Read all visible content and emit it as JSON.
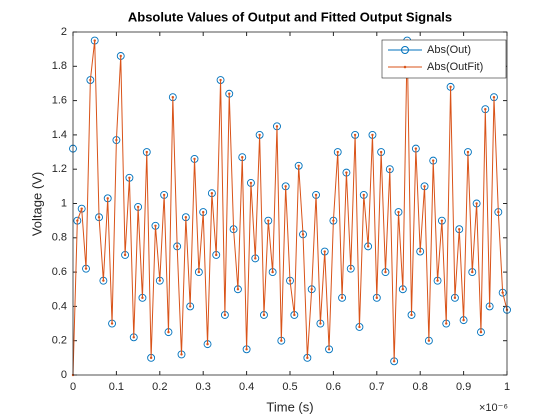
{
  "chart_data": {
    "type": "line",
    "title": "Absolute Values of Output and Fitted Output Signals",
    "xlabel": "Time (s)",
    "ylabel": "Voltage (V)",
    "x_exponent": "×10⁻⁶",
    "x": [
      0,
      1e-08,
      2e-08,
      3e-08,
      4e-08,
      5e-08,
      6e-08,
      7e-08,
      8e-08,
      9e-08,
      1e-07,
      1.1e-07,
      1.2e-07,
      1.3e-07,
      1.4e-07,
      1.5e-07,
      1.6e-07,
      1.7e-07,
      1.8e-07,
      1.9e-07,
      2e-07,
      2.1e-07,
      2.2e-07,
      2.3e-07,
      2.4e-07,
      2.5e-07,
      2.6e-07,
      2.7e-07,
      2.8e-07,
      2.9e-07,
      3e-07,
      3.1e-07,
      3.2e-07,
      3.3e-07,
      3.4e-07,
      3.5e-07,
      3.6e-07,
      3.7e-07,
      3.8e-07,
      3.9e-07,
      4e-07,
      4.1e-07,
      4.2e-07,
      4.3e-07,
      4.4e-07,
      4.5e-07,
      4.6e-07,
      4.7e-07,
      4.8e-07,
      4.9e-07,
      5e-07,
      5.1e-07,
      5.2e-07,
      5.3e-07,
      5.4e-07,
      5.5e-07,
      5.6e-07,
      5.7e-07,
      5.8e-07,
      5.9e-07,
      6e-07,
      6.1e-07,
      6.2e-07,
      6.3e-07,
      6.4e-07,
      6.5e-07,
      6.6e-07,
      6.7e-07,
      6.8e-07,
      6.9e-07,
      7e-07,
      7.1e-07,
      7.2e-07,
      7.3e-07,
      7.4e-07,
      7.5e-07,
      7.6e-07,
      7.7e-07,
      7.8e-07,
      7.9e-07,
      8e-07,
      8.1e-07,
      8.2e-07,
      8.3e-07,
      8.4e-07,
      8.5e-07,
      8.6e-07,
      8.7e-07,
      8.8e-07,
      8.9e-07,
      9e-07,
      9.1e-07,
      9.2e-07,
      9.3e-07,
      9.4e-07,
      9.5e-07,
      9.6e-07,
      9.7e-07,
      9.8e-07,
      9.9e-07,
      1e-06
    ],
    "series": [
      {
        "name": "Abs(Out)",
        "color": "#0072bd",
        "marker": "circle",
        "values": [
          1.32,
          0.9,
          0.97,
          0.62,
          1.72,
          1.95,
          0.92,
          0.55,
          1.03,
          0.3,
          1.37,
          1.86,
          0.7,
          1.15,
          0.22,
          0.98,
          0.45,
          1.3,
          0.1,
          0.87,
          0.55,
          1.05,
          0.25,
          1.62,
          0.75,
          0.12,
          0.92,
          0.4,
          1.26,
          0.6,
          0.95,
          0.18,
          1.06,
          0.7,
          1.72,
          0.35,
          1.64,
          0.85,
          0.5,
          1.27,
          0.15,
          1.12,
          0.68,
          1.4,
          0.35,
          0.9,
          0.6,
          1.45,
          0.2,
          1.1,
          0.55,
          0.35,
          1.22,
          0.82,
          0.1,
          0.5,
          1.05,
          0.3,
          0.72,
          0.15,
          0.9,
          1.3,
          0.45,
          1.18,
          0.62,
          1.4,
          0.28,
          1.05,
          0.75,
          1.4,
          0.45,
          1.3,
          0.6,
          1.2,
          0.08,
          0.95,
          0.5,
          1.95,
          0.35,
          1.32,
          0.72,
          1.1,
          0.2,
          1.25,
          0.55,
          0.9,
          0.3,
          1.68,
          0.45,
          0.85,
          0.32,
          1.3,
          0.6,
          1.0,
          0.25,
          1.55,
          0.4,
          1.62,
          0.95,
          0.48,
          0.38
        ]
      },
      {
        "name": "Abs(OutFit)",
        "color": "#d95319",
        "marker": "dot",
        "line": true,
        "values": [
          0,
          0.9,
          0.97,
          0.62,
          1.72,
          1.95,
          0.92,
          0.55,
          1.03,
          0.3,
          1.37,
          1.86,
          0.7,
          1.15,
          0.22,
          0.98,
          0.45,
          1.3,
          0.1,
          0.87,
          0.55,
          1.05,
          0.25,
          1.62,
          0.75,
          0.12,
          0.92,
          0.4,
          1.26,
          0.6,
          0.95,
          0.18,
          1.06,
          0.7,
          1.72,
          0.35,
          1.64,
          0.85,
          0.5,
          1.27,
          0.15,
          1.12,
          0.68,
          1.4,
          0.35,
          0.9,
          0.6,
          1.45,
          0.2,
          1.1,
          0.55,
          0.35,
          1.22,
          0.82,
          0.1,
          0.5,
          1.05,
          0.3,
          0.72,
          0.15,
          0.9,
          1.3,
          0.45,
          1.18,
          0.62,
          1.4,
          0.28,
          1.05,
          0.75,
          1.4,
          0.45,
          1.3,
          0.6,
          1.2,
          0.08,
          0.95,
          0.5,
          1.95,
          0.35,
          1.32,
          0.72,
          1.1,
          0.2,
          1.25,
          0.55,
          0.9,
          0.3,
          1.68,
          0.45,
          0.85,
          0.32,
          1.3,
          0.6,
          1.0,
          0.25,
          1.55,
          0.4,
          1.62,
          0.95,
          0.48,
          0.38
        ]
      }
    ],
    "xlim": [
      0,
      1e-06
    ],
    "xticks": [
      0,
      {
        "value": 1e-07,
        "label": "0.1"
      },
      {
        "value": 2e-07,
        "label": "0.2"
      },
      {
        "value": 3e-07,
        "label": "0.3"
      },
      {
        "value": 4e-07,
        "label": "0.4"
      },
      {
        "value": 5e-07,
        "label": "0.5"
      },
      {
        "value": 6e-07,
        "label": "0.6"
      },
      {
        "value": 7e-07,
        "label": "0.7"
      },
      {
        "value": 8e-07,
        "label": "0.8"
      },
      {
        "value": 9e-07,
        "label": "0.9"
      },
      {
        "value": 1e-06,
        "label": "1"
      }
    ],
    "ylim": [
      0,
      2
    ],
    "yticks": [
      0,
      0.2,
      0.4,
      0.6,
      0.8,
      1,
      1.2,
      1.4,
      1.6,
      1.8,
      2
    ],
    "grid": false,
    "legend": "northeast"
  }
}
